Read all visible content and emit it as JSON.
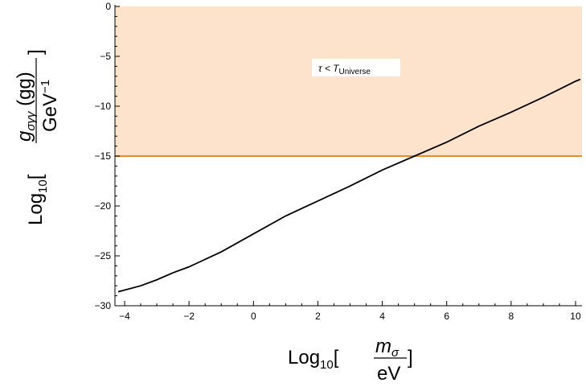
{
  "chart_data": {
    "type": "line",
    "xlim": [
      -4.3,
      10.2
    ],
    "ylim": [
      -30,
      0
    ],
    "x_ticks": [
      -4,
      -2,
      0,
      2,
      4,
      6,
      8,
      10
    ],
    "y_ticks": [
      0,
      -5,
      -10,
      -15,
      -20,
      -25,
      -30
    ],
    "grid": false,
    "xlabel": {
      "base": "Log",
      "sub": "10",
      "bracket_open": "[",
      "numerator": "m",
      "numerator_sub": "σ",
      "denominator": "eV",
      "bracket_close": "]"
    },
    "ylabel": {
      "base": "Log",
      "sub": "10",
      "bracket_open": "[",
      "numerator": "g",
      "numerator_sub": "σγγ",
      "numerator_suffix": " (gg)",
      "denominator": "GeV",
      "denominator_sup": "−1",
      "bracket_close": "]"
    },
    "region": {
      "y_from": -15,
      "y_to": 0,
      "fill": "#fde3cb",
      "boundary_color": "#f08a24",
      "label_main": "τ < T",
      "label_sub": "Universe"
    },
    "series": [
      {
        "color": "#000000",
        "points": [
          [
            -4.2,
            -28.6
          ],
          [
            -3.5,
            -28.0
          ],
          [
            -3.0,
            -27.4
          ],
          [
            -2.5,
            -26.7
          ],
          [
            -2.0,
            -26.1
          ],
          [
            -1.0,
            -24.6
          ],
          [
            0.0,
            -22.8
          ],
          [
            1.0,
            -21.0
          ],
          [
            2.0,
            -19.5
          ],
          [
            3.0,
            -18.0
          ],
          [
            4.0,
            -16.4
          ],
          [
            5.0,
            -15.0
          ],
          [
            6.0,
            -13.6
          ],
          [
            7.0,
            -12.0
          ],
          [
            8.0,
            -10.6
          ],
          [
            9.0,
            -9.1
          ],
          [
            9.5,
            -8.3
          ],
          [
            10.0,
            -7.5
          ],
          [
            10.15,
            -7.3
          ]
        ]
      }
    ]
  }
}
